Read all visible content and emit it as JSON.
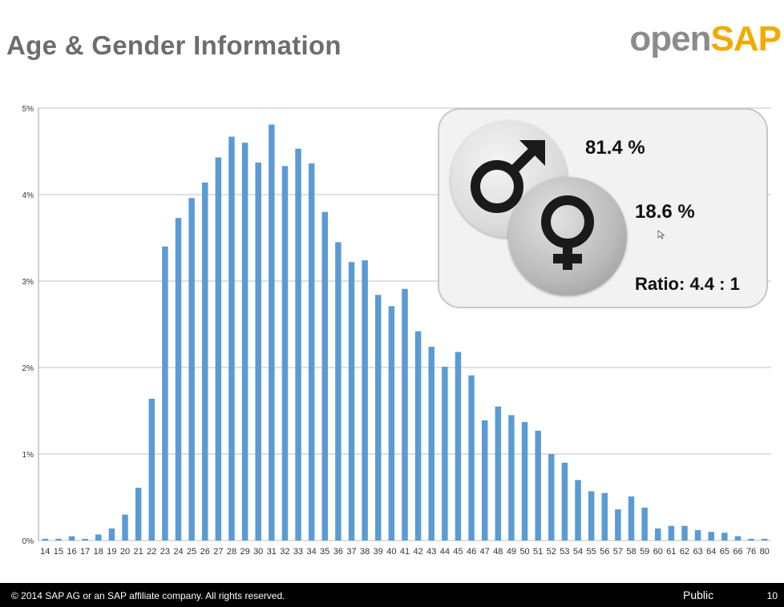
{
  "slide": {
    "title": "Age & Gender Information",
    "logo": {
      "part1": "open",
      "part2": "SAP"
    }
  },
  "gender": {
    "male_pct": "81.4 %",
    "female_pct": "18.6 %",
    "ratio": "Ratio:  4.4 : 1",
    "male_icon": "male-symbol-icon",
    "female_icon": "female-symbol-icon"
  },
  "footer": {
    "copyright": "© 2014 SAP AG or an SAP affiliate company. All rights reserved.",
    "classification": "Public",
    "page_number": "10"
  },
  "colors": {
    "bar": "#5b9bd5",
    "title": "#6d6d6d",
    "logo_gray": "#8c8c8c",
    "logo_gold": "#f0ab00"
  },
  "chart_data": {
    "type": "bar",
    "categories": [
      "14",
      "15",
      "16",
      "17",
      "18",
      "19",
      "20",
      "21",
      "22",
      "23",
      "24",
      "25",
      "26",
      "27",
      "28",
      "29",
      "30",
      "31",
      "32",
      "33",
      "34",
      "35",
      "36",
      "37",
      "38",
      "39",
      "40",
      "41",
      "42",
      "43",
      "44",
      "45",
      "46",
      "47",
      "48",
      "49",
      "50",
      "51",
      "52",
      "53",
      "54",
      "55",
      "56",
      "57",
      "58",
      "59",
      "60",
      "61",
      "62",
      "63",
      "64",
      "65",
      "66",
      "76",
      "80"
    ],
    "values": [
      0.02,
      0.02,
      0.05,
      0.02,
      0.07,
      0.14,
      0.3,
      0.61,
      1.64,
      3.4,
      3.73,
      3.96,
      4.14,
      4.43,
      4.67,
      4.6,
      4.37,
      4.81,
      4.33,
      4.53,
      4.36,
      3.8,
      3.45,
      3.22,
      3.24,
      2.84,
      2.71,
      2.91,
      2.42,
      2.24,
      2.01,
      2.18,
      1.91,
      1.39,
      1.55,
      1.45,
      1.37,
      1.27,
      1.0,
      0.9,
      0.7,
      0.57,
      0.55,
      0.36,
      0.51,
      0.38,
      0.14,
      0.17,
      0.17,
      0.12,
      0.1,
      0.09,
      0.05,
      0.02,
      0.02
    ],
    "ylim": [
      0,
      5
    ],
    "yticks": [
      "0%",
      "1%",
      "2%",
      "3%",
      "4%",
      "5%"
    ],
    "grid": true,
    "unit": "%"
  }
}
